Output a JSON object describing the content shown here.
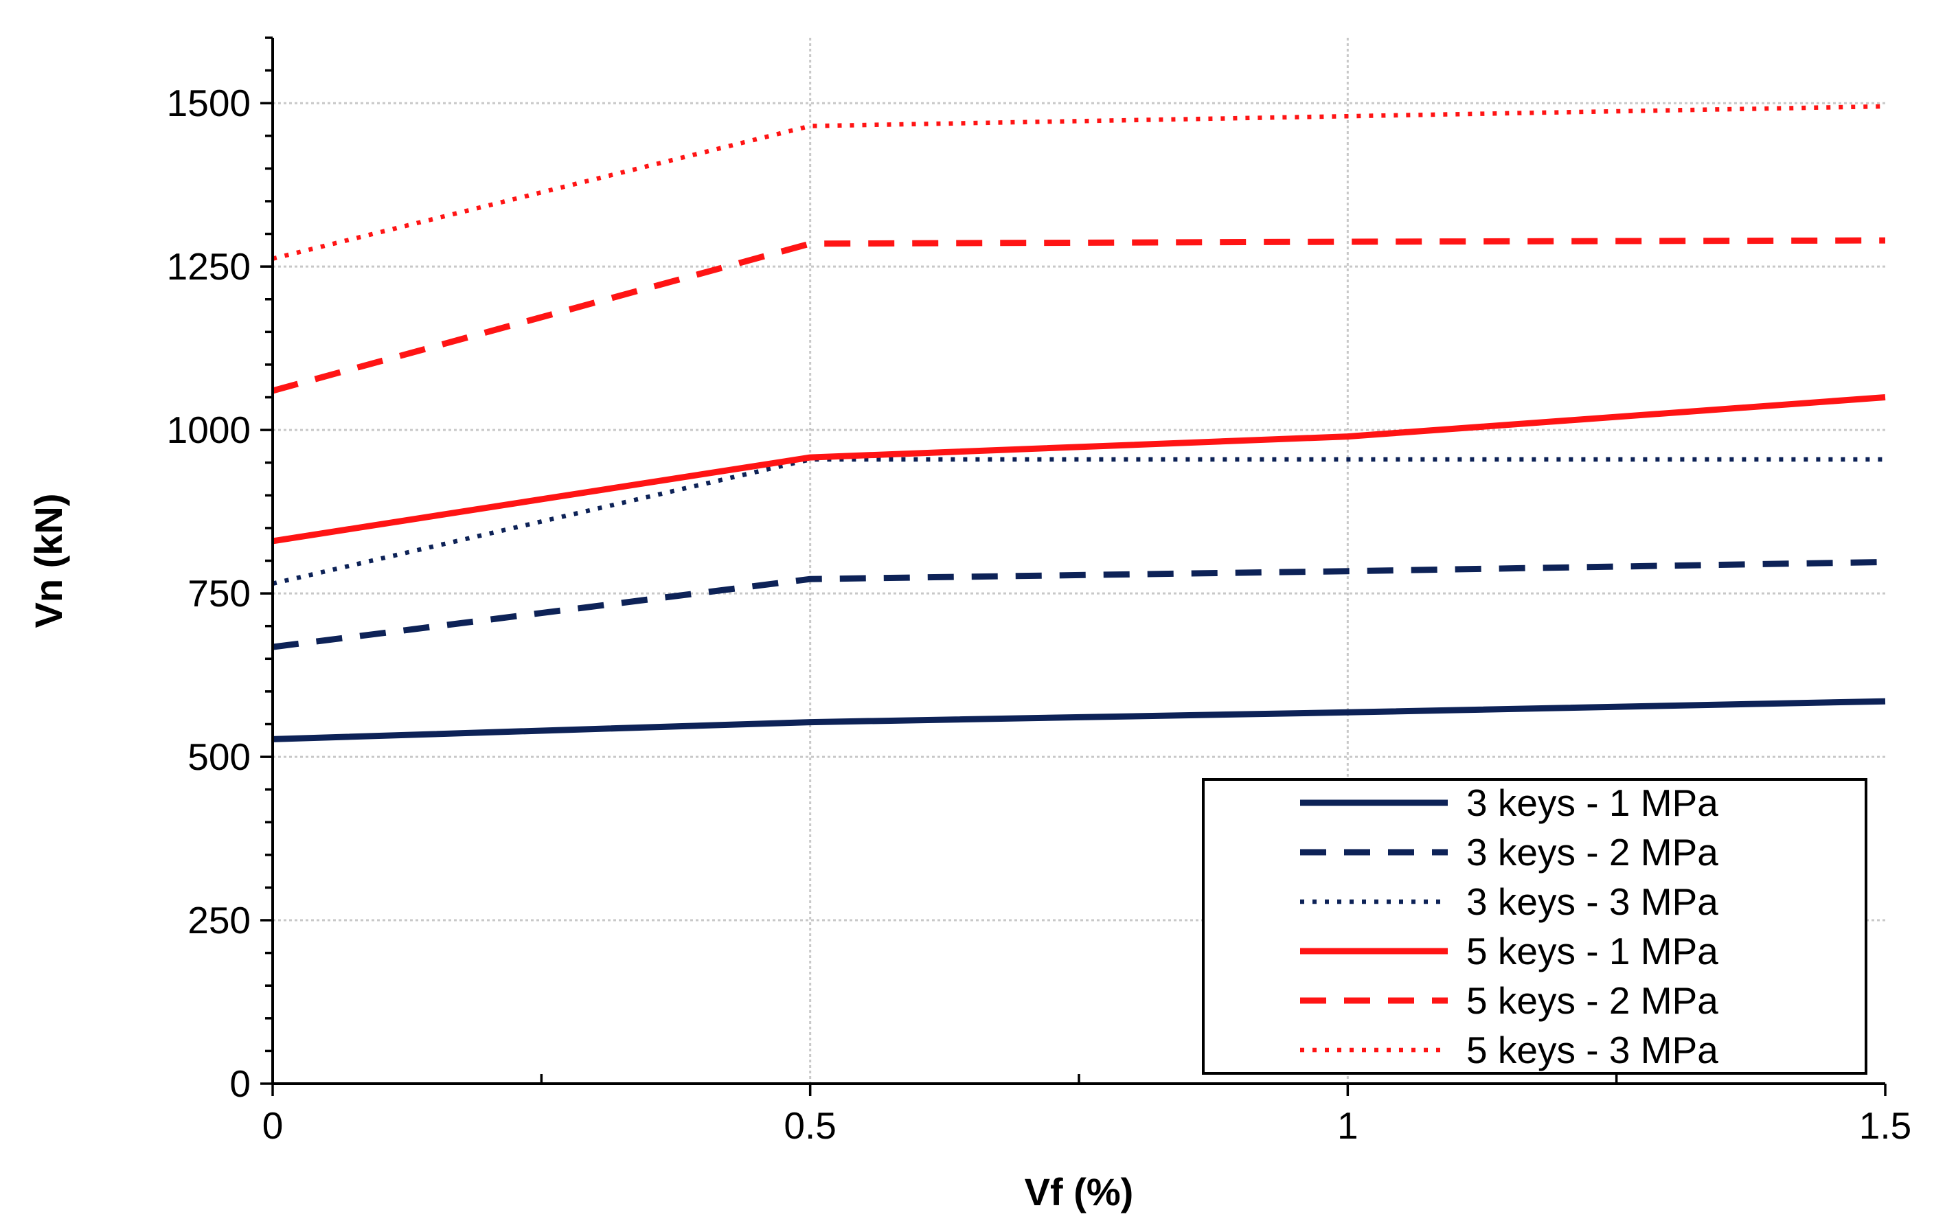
{
  "chart_data": {
    "type": "line",
    "title": "",
    "xlabel": "Vf (%)",
    "ylabel": "Vn (kN)",
    "xlim": [
      0,
      1.5
    ],
    "ylim": [
      0,
      1600
    ],
    "x_ticks": [
      0,
      0.5,
      1,
      1.5
    ],
    "x_tick_labels": [
      "0",
      "0.5",
      "1",
      "1.5"
    ],
    "x_minor_ticks": [
      0.25,
      0.75,
      1.25
    ],
    "y_ticks": [
      0,
      250,
      500,
      750,
      1000,
      1250,
      1500
    ],
    "y_tick_labels": [
      "0",
      "250",
      "500",
      "750",
      "1000",
      "1250",
      "1500"
    ],
    "y_minor_step": 50,
    "grid": true,
    "legend_position": "bottom-right",
    "x": [
      0,
      0.5,
      1,
      1.5
    ],
    "series": [
      {
        "name": "3 keys - 1 MPa",
        "values": [
          527,
          553,
          568,
          585
        ],
        "color": "#0d2257",
        "style": "solid"
      },
      {
        "name": "3 keys - 2 MPa",
        "values": [
          668,
          772,
          784,
          798
        ],
        "color": "#0d2257",
        "style": "dashed"
      },
      {
        "name": "3 keys - 3 MPa",
        "values": [
          765,
          955,
          955,
          955
        ],
        "color": "#0d2257",
        "style": "dotted"
      },
      {
        "name": "5 keys - 1 MPa",
        "values": [
          830,
          958,
          990,
          1050
        ],
        "color": "#ff1414",
        "style": "solid"
      },
      {
        "name": "5 keys - 2 MPa",
        "values": [
          1060,
          1285,
          1288,
          1290
        ],
        "color": "#ff1414",
        "style": "dashed"
      },
      {
        "name": "5 keys - 3 MPa",
        "values": [
          1262,
          1465,
          1480,
          1495
        ],
        "color": "#ff1414",
        "style": "dotted"
      }
    ]
  }
}
